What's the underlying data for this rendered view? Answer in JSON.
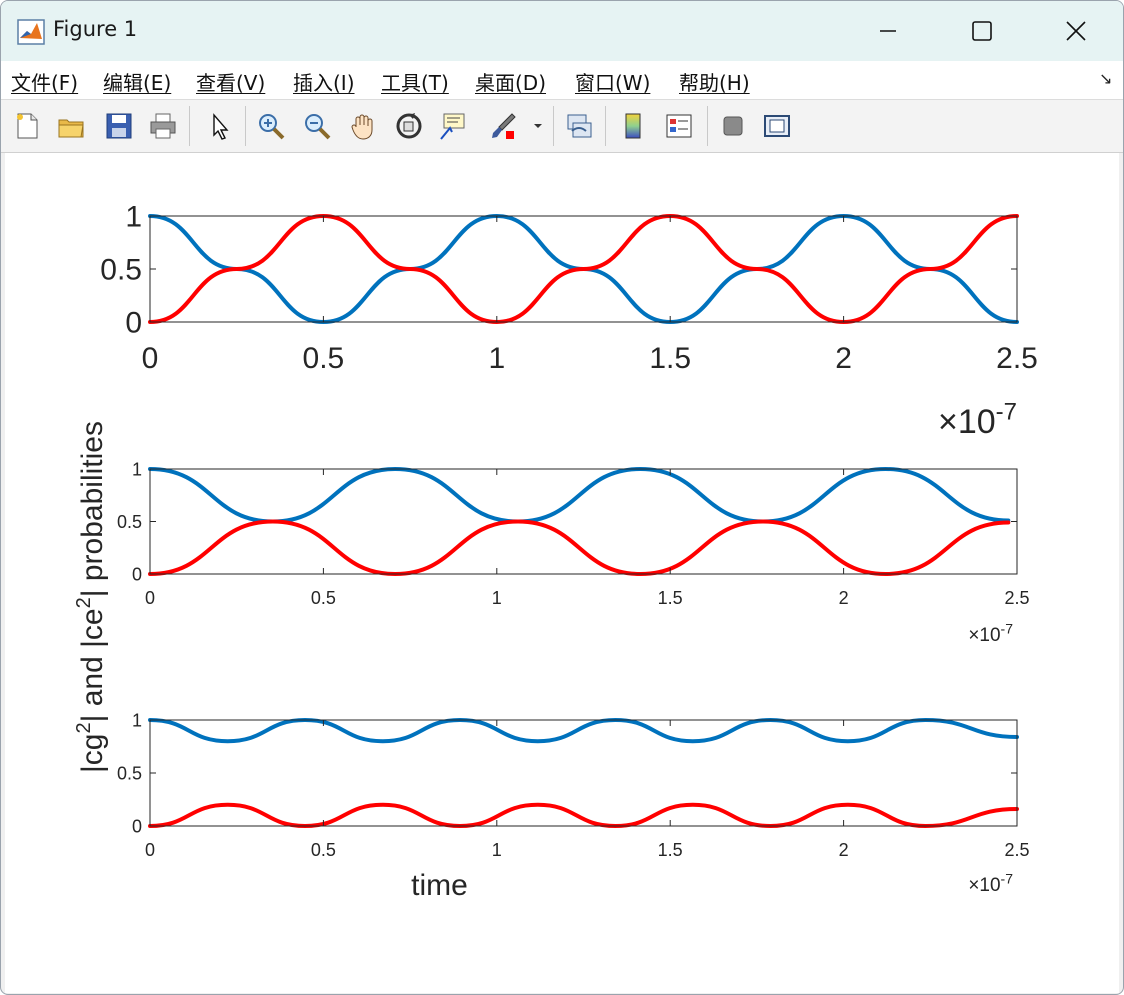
{
  "window": {
    "title": "Figure 1",
    "buttons": [
      "minimize-button",
      "maximize-button",
      "close-button"
    ]
  },
  "menubar": {
    "items": [
      "文件(F)",
      "编辑(E)",
      "查看(V)",
      "插入(I)",
      "工具(T)",
      "桌面(D)",
      "窗口(W)",
      "帮助(H)"
    ],
    "more_glyph": "↘"
  },
  "toolbar": {
    "icons": [
      "new-figure-icon",
      "open-file-icon",
      "save-icon",
      "print-icon",
      "pointer-icon",
      "zoom-in-icon",
      "zoom-out-icon",
      "pan-hand-icon",
      "rotate-3d-icon",
      "data-cursor-icon",
      "brush-icon",
      "brush-dropdown-icon",
      "link-plot-icon",
      "colorbar-icon",
      "legend-icon",
      "hide-plot-tools-icon",
      "show-plot-tools-icon"
    ]
  },
  "colors": {
    "series_cg": "#0072BD",
    "series_ce": "#FF0000",
    "axis": "#262626",
    "title_bar": "#e6f3f3"
  },
  "chart_data": [
    {
      "type": "line",
      "xlim": [
        0,
        2.5e-07
      ],
      "ylim": [
        0,
        1
      ],
      "xticks": [
        "0",
        "0.5",
        "1",
        "1.5",
        "2",
        "2.5"
      ],
      "yticks": [
        "0",
        "0.5",
        "1"
      ],
      "x_exponent": "-7",
      "grid": false,
      "series": [
        {
          "x": [
            0,
            2.5e-08,
            5e-08,
            7.5e-08,
            1e-07,
            1.25e-07,
            1.5e-07,
            1.75e-07,
            2e-07,
            2.25e-07,
            2.5e-07
          ],
          "y": [
            1,
            0.5,
            0,
            0.5,
            1,
            0.5,
            0,
            0.5,
            1,
            0.5,
            0
          ],
          "color": "#0072BD"
        },
        {
          "x": [
            0,
            2.5e-08,
            5e-08,
            7.5e-08,
            1e-07,
            1.25e-07,
            1.5e-07,
            1.75e-07,
            2e-07,
            2.25e-07,
            2.5e-07
          ],
          "y": [
            0,
            0.5,
            1,
            0.5,
            0,
            0.5,
            1,
            0.5,
            0,
            0.5,
            1
          ],
          "color": "#FF0000"
        }
      ]
    },
    {
      "type": "line",
      "xlim": [
        0,
        2.5e-07
      ],
      "ylim": [
        0,
        1
      ],
      "xticks": [
        "0",
        "0.5",
        "1",
        "1.5",
        "2",
        "2.5"
      ],
      "yticks": [
        "0",
        "0.5",
        "1"
      ],
      "x_exponent": "-7",
      "grid": false,
      "series": [
        {
          "x": [
            0,
            3.54e-08,
            7.07e-08,
            1.061e-07,
            1.414e-07,
            1.768e-07,
            2.121e-07,
            2.475e-07
          ],
          "y": [
            1,
            0.5,
            1,
            0.5,
            1,
            0.5,
            1,
            0.51
          ],
          "color": "#0072BD"
        },
        {
          "x": [
            0,
            3.54e-08,
            7.07e-08,
            1.061e-07,
            1.414e-07,
            1.768e-07,
            2.121e-07,
            2.475e-07
          ],
          "y": [
            0,
            0.5,
            0,
            0.5,
            0,
            0.5,
            0,
            0.49
          ],
          "color": "#FF0000"
        }
      ]
    },
    {
      "type": "line",
      "xlim": [
        0,
        2.5e-07
      ],
      "ylim": [
        0,
        1
      ],
      "xticks": [
        "0",
        "0.5",
        "1",
        "1.5",
        "2",
        "2.5"
      ],
      "yticks": [
        "0",
        "0.5",
        "1"
      ],
      "x_exponent": "-7",
      "xlabel": "time",
      "grid": false,
      "series": [
        {
          "x": [
            0,
            2.24e-08,
            4.47e-08,
            6.71e-08,
            8.94e-08,
            1.118e-07,
            1.342e-07,
            1.565e-07,
            1.789e-07,
            2.012e-07,
            2.236e-07,
            2.5e-07
          ],
          "y": [
            1,
            0.8,
            1,
            0.8,
            1,
            0.8,
            1,
            0.8,
            1,
            0.8,
            1,
            0.84
          ],
          "color": "#0072BD"
        },
        {
          "x": [
            0,
            2.24e-08,
            4.47e-08,
            6.71e-08,
            8.94e-08,
            1.118e-07,
            1.342e-07,
            1.565e-07,
            1.789e-07,
            2.012e-07,
            2.236e-07,
            2.5e-07
          ],
          "y": [
            0,
            0.2,
            0,
            0.2,
            0,
            0.2,
            0,
            0.2,
            0,
            0.2,
            0,
            0.16
          ],
          "color": "#FF0000"
        }
      ]
    }
  ],
  "shared_ylabel": {
    "p1": "|cg",
    "sup1": "2",
    "p2": "| and |ce",
    "sup2": "2",
    "p3": "| probabilities"
  }
}
